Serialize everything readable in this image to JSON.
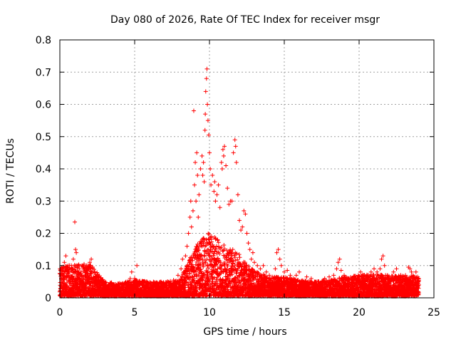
{
  "chart_data": {
    "type": "scatter",
    "title": "Day 080 of 2026, Rate Of TEC Index for receiver msgr",
    "xlabel": "GPS time / hours",
    "ylabel": "ROTI / TECUs",
    "xlim": [
      0,
      25
    ],
    "ylim": [
      0,
      0.8
    ],
    "xticks": [
      0,
      5,
      10,
      15,
      20,
      25
    ],
    "yticks": [
      0,
      0.1,
      0.2,
      0.3,
      0.4,
      0.5,
      0.6,
      0.7,
      0.8
    ],
    "xtick_labels": [
      "0",
      "5",
      "10",
      "15",
      "20",
      "25"
    ],
    "ytick_labels": [
      "0",
      "0.1",
      "0.2",
      "0.3",
      "0.4",
      "0.5",
      "0.6",
      "0.7",
      "0.8"
    ],
    "grid": true,
    "marker": "+",
    "color": "#ff0000",
    "series": [
      {
        "name": "ROTI",
        "points": [
          [
            0.1,
            0.06
          ],
          [
            0.2,
            0.09
          ],
          [
            0.3,
            0.11
          ],
          [
            0.4,
            0.13
          ],
          [
            0.5,
            0.08
          ],
          [
            0.6,
            0.07
          ],
          [
            0.7,
            0.05
          ],
          [
            0.8,
            0.09
          ],
          [
            0.9,
            0.12
          ],
          [
            1.0,
            0.235
          ],
          [
            1.05,
            0.15
          ],
          [
            1.1,
            0.14
          ],
          [
            1.2,
            0.1
          ],
          [
            1.3,
            0.09
          ],
          [
            1.4,
            0.08
          ],
          [
            1.5,
            0.1
          ],
          [
            1.6,
            0.09
          ],
          [
            1.7,
            0.07
          ],
          [
            1.8,
            0.1
          ],
          [
            1.9,
            0.095
          ],
          [
            2.0,
            0.11
          ],
          [
            2.1,
            0.12
          ],
          [
            2.2,
            0.06
          ],
          [
            2.4,
            0.05
          ],
          [
            2.7,
            0.04
          ],
          [
            3.0,
            0.04
          ],
          [
            3.3,
            0.035
          ],
          [
            3.6,
            0.03
          ],
          [
            3.9,
            0.03
          ],
          [
            4.2,
            0.045
          ],
          [
            4.5,
            0.05
          ],
          [
            4.7,
            0.06
          ],
          [
            4.8,
            0.08
          ],
          [
            5.0,
            0.06
          ],
          [
            5.15,
            0.1
          ],
          [
            5.3,
            0.04
          ],
          [
            5.7,
            0.05
          ],
          [
            6.1,
            0.045
          ],
          [
            6.4,
            0.04
          ],
          [
            6.8,
            0.045
          ],
          [
            7.2,
            0.05
          ],
          [
            7.6,
            0.055
          ],
          [
            7.9,
            0.07
          ],
          [
            8.1,
            0.09
          ],
          [
            8.2,
            0.12
          ],
          [
            8.3,
            0.08
          ],
          [
            8.4,
            0.13
          ],
          [
            8.5,
            0.16
          ],
          [
            8.6,
            0.2
          ],
          [
            8.7,
            0.25
          ],
          [
            8.75,
            0.3
          ],
          [
            8.8,
            0.22
          ],
          [
            8.9,
            0.27
          ],
          [
            8.95,
            0.58
          ],
          [
            9.0,
            0.35
          ],
          [
            9.05,
            0.42
          ],
          [
            9.1,
            0.3
          ],
          [
            9.15,
            0.45
          ],
          [
            9.2,
            0.38
          ],
          [
            9.25,
            0.25
          ],
          [
            9.3,
            0.32
          ],
          [
            9.4,
            0.4
          ],
          [
            9.5,
            0.44
          ],
          [
            9.55,
            0.38
          ],
          [
            9.6,
            0.42
          ],
          [
            9.65,
            0.36
          ],
          [
            9.7,
            0.52
          ],
          [
            9.72,
            0.57
          ],
          [
            9.75,
            0.64
          ],
          [
            9.8,
            0.68
          ],
          [
            9.83,
            0.71
          ],
          [
            9.86,
            0.6
          ],
          [
            9.9,
            0.55
          ],
          [
            9.95,
            0.505
          ],
          [
            10.0,
            0.45
          ],
          [
            10.05,
            0.4
          ],
          [
            10.1,
            0.35
          ],
          [
            10.2,
            0.38
          ],
          [
            10.3,
            0.33
          ],
          [
            10.35,
            0.36
          ],
          [
            10.4,
            0.3
          ],
          [
            10.5,
            0.32
          ],
          [
            10.6,
            0.35
          ],
          [
            10.7,
            0.28
          ],
          [
            10.8,
            0.42
          ],
          [
            10.85,
            0.4
          ],
          [
            10.9,
            0.46
          ],
          [
            10.95,
            0.44
          ],
          [
            11.0,
            0.47
          ],
          [
            11.1,
            0.41
          ],
          [
            11.2,
            0.34
          ],
          [
            11.3,
            0.29
          ],
          [
            11.4,
            0.3
          ],
          [
            11.5,
            0.3
          ],
          [
            11.6,
            0.45
          ],
          [
            11.7,
            0.49
          ],
          [
            11.75,
            0.47
          ],
          [
            11.8,
            0.42
          ],
          [
            11.9,
            0.32
          ],
          [
            12.0,
            0.24
          ],
          [
            12.1,
            0.21
          ],
          [
            12.2,
            0.22
          ],
          [
            12.3,
            0.27
          ],
          [
            12.4,
            0.26
          ],
          [
            12.5,
            0.2
          ],
          [
            12.6,
            0.17
          ],
          [
            12.7,
            0.15
          ],
          [
            12.8,
            0.12
          ],
          [
            12.9,
            0.14
          ],
          [
            13.0,
            0.11
          ],
          [
            13.2,
            0.1
          ],
          [
            13.4,
            0.09
          ],
          [
            13.6,
            0.1
          ],
          [
            13.8,
            0.08
          ],
          [
            14.0,
            0.07
          ],
          [
            14.2,
            0.065
          ],
          [
            14.4,
            0.09
          ],
          [
            14.5,
            0.14
          ],
          [
            14.6,
            0.15
          ],
          [
            14.7,
            0.12
          ],
          [
            14.8,
            0.1
          ],
          [
            15.0,
            0.08
          ],
          [
            15.2,
            0.085
          ],
          [
            15.4,
            0.07
          ],
          [
            15.6,
            0.06
          ],
          [
            15.8,
            0.07
          ],
          [
            16.0,
            0.08
          ],
          [
            16.2,
            0.05
          ],
          [
            16.5,
            0.065
          ],
          [
            16.8,
            0.06
          ],
          [
            17.1,
            0.05
          ],
          [
            17.4,
            0.045
          ],
          [
            17.7,
            0.06
          ],
          [
            18.0,
            0.065
          ],
          [
            18.3,
            0.07
          ],
          [
            18.5,
            0.09
          ],
          [
            18.6,
            0.11
          ],
          [
            18.7,
            0.12
          ],
          [
            18.8,
            0.085
          ],
          [
            19.0,
            0.07
          ],
          [
            19.3,
            0.06
          ],
          [
            19.6,
            0.045
          ],
          [
            19.9,
            0.05
          ],
          [
            20.1,
            0.08
          ],
          [
            20.3,
            0.07
          ],
          [
            20.5,
            0.06
          ],
          [
            20.8,
            0.08
          ],
          [
            21.0,
            0.09
          ],
          [
            21.2,
            0.08
          ],
          [
            21.4,
            0.09
          ],
          [
            21.5,
            0.12
          ],
          [
            21.6,
            0.13
          ],
          [
            21.7,
            0.1
          ],
          [
            21.9,
            0.07
          ],
          [
            22.1,
            0.06
          ],
          [
            22.3,
            0.08
          ],
          [
            22.5,
            0.09
          ],
          [
            22.7,
            0.06
          ],
          [
            22.9,
            0.05
          ],
          [
            23.1,
            0.07
          ],
          [
            23.3,
            0.095
          ],
          [
            23.4,
            0.09
          ],
          [
            23.5,
            0.08
          ],
          [
            23.6,
            0.07
          ],
          [
            23.7,
            0.06
          ],
          [
            23.8,
            0.08
          ],
          [
            23.9,
            0.05
          ],
          [
            24.0,
            0.04
          ]
        ]
      }
    ],
    "density_profile": {
      "description_hours": [
        0,
        1,
        2,
        3,
        4,
        5,
        6,
        7,
        8,
        8.5,
        9,
        9.5,
        10,
        10.5,
        11,
        11.5,
        12,
        12.5,
        13,
        14,
        15,
        16,
        17,
        18,
        19,
        20,
        21,
        22,
        23,
        24
      ],
      "baseline_max": [
        0.09,
        0.1,
        0.1,
        0.045,
        0.04,
        0.05,
        0.045,
        0.045,
        0.05,
        0.1,
        0.15,
        0.18,
        0.2,
        0.18,
        0.16,
        0.15,
        0.13,
        0.1,
        0.08,
        0.06,
        0.06,
        0.05,
        0.045,
        0.05,
        0.06,
        0.065,
        0.07,
        0.065,
        0.065,
        0.06
      ]
    }
  }
}
